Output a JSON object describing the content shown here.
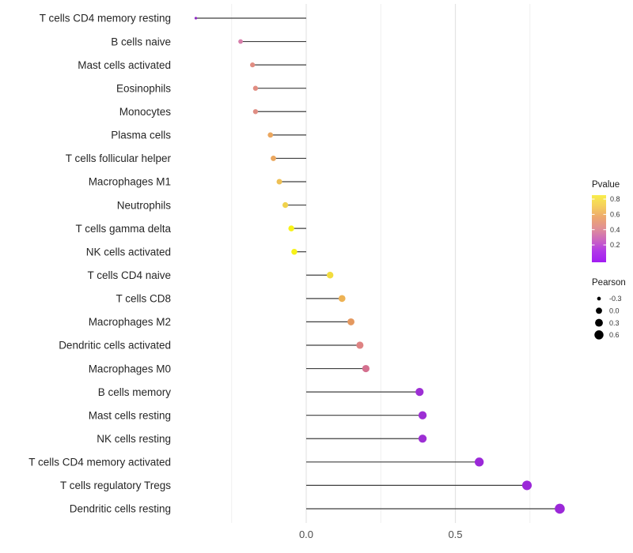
{
  "chart_data": {
    "type": "lollipop",
    "title": "",
    "xlabel": "",
    "ylabel": "",
    "orientation": "horizontal",
    "grid": "vertical gridlines only, light gray, no axis lines, white background",
    "x_axis": {
      "tick_labels": [
        "0.0",
        "0.5"
      ],
      "tick_values": [
        0.0,
        0.5
      ],
      "minor_gridlines": [
        -0.25,
        0.25,
        0.75
      ],
      "range": [
        -0.44,
        0.92
      ]
    },
    "categories": [
      "T cells CD4 memory resting",
      "B cells naive",
      "Mast cells activated",
      "Eosinophils",
      "Monocytes",
      "Plasma cells",
      "T cells follicular helper",
      "Macrophages M1",
      "Neutrophils",
      "T cells gamma delta",
      "NK cells activated",
      "T cells CD4 naive",
      "T cells CD8",
      "Macrophages M2",
      "Dendritic cells activated",
      "Macrophages M0",
      "B cells memory",
      "Mast cells resting",
      "NK cells resting",
      "T cells CD4 memory activated",
      "T cells regulatory  Tregs",
      "Dendritic cells resting"
    ],
    "series": [
      {
        "name": "Pearson",
        "values": [
          -0.37,
          -0.22,
          -0.18,
          -0.17,
          -0.17,
          -0.12,
          -0.11,
          -0.09,
          -0.07,
          -0.05,
          -0.04,
          0.08,
          0.12,
          0.15,
          0.18,
          0.2,
          0.38,
          0.39,
          0.39,
          0.58,
          0.74,
          0.85
        ]
      }
    ],
    "pvalue_by_color_approx": [
      0.05,
      0.33,
      0.44,
      0.44,
      0.45,
      0.55,
      0.55,
      0.63,
      0.68,
      0.85,
      0.85,
      0.74,
      0.6,
      0.5,
      0.43,
      0.36,
      0.02,
      0.02,
      0.02,
      0.01,
      0.01,
      0.01
    ],
    "point_colors": [
      "#8F2BC4",
      "#D77FAB",
      "#E18D82",
      "#E18D82",
      "#E08E84",
      "#EBA75F",
      "#EBA75F",
      "#EEC055",
      "#F0D24C",
      "#F7F218",
      "#F7F218",
      "#F2DC3F",
      "#EDB254",
      "#E4985F",
      "#DE8383",
      "#D4708F",
      "#9D2FD4",
      "#9D2FD4",
      "#9D2FD4",
      "#9B28D8",
      "#9B28D8",
      "#9B28D8"
    ],
    "stick_color": "#3f3f3f",
    "legend": {
      "pvalue": {
        "title": "Pvalue",
        "tick_labels": [
          "0.8",
          "0.6",
          "0.4",
          "0.2"
        ],
        "tick_values": [
          0.8,
          0.6,
          0.4,
          0.2
        ],
        "gradient_top_to_bottom": [
          "#F8ED4B",
          "#F5CE5C",
          "#EDA76F",
          "#E08F97",
          "#CC67BF",
          "#B138E8",
          "#A21CF2"
        ]
      },
      "pearson": {
        "title": "Pearson",
        "items": [
          {
            "label": "-0.3",
            "value": -0.3
          },
          {
            "label": "0.0",
            "value": 0.0
          },
          {
            "label": "0.3",
            "value": 0.3
          },
          {
            "label": "0.6",
            "value": 0.6
          }
        ],
        "dot_color": "#000000"
      }
    }
  }
}
